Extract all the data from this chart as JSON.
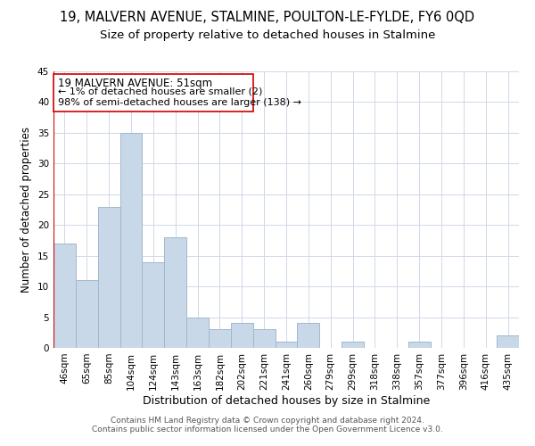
{
  "title": "19, MALVERN AVENUE, STALMINE, POULTON-LE-FYLDE, FY6 0QD",
  "subtitle": "Size of property relative to detached houses in Stalmine",
  "xlabel": "Distribution of detached houses by size in Stalmine",
  "ylabel": "Number of detached properties",
  "bar_color": "#c8d8e8",
  "bar_edge_color": "#a0b8cc",
  "categories": [
    "46sqm",
    "65sqm",
    "85sqm",
    "104sqm",
    "124sqm",
    "143sqm",
    "163sqm",
    "182sqm",
    "202sqm",
    "221sqm",
    "241sqm",
    "260sqm",
    "279sqm",
    "299sqm",
    "318sqm",
    "338sqm",
    "357sqm",
    "377sqm",
    "396sqm",
    "416sqm",
    "435sqm"
  ],
  "values": [
    17,
    11,
    23,
    35,
    14,
    18,
    5,
    3,
    4,
    3,
    1,
    4,
    0,
    1,
    0,
    0,
    1,
    0,
    0,
    0,
    2
  ],
  "ylim": [
    0,
    45
  ],
  "yticks": [
    0,
    5,
    10,
    15,
    20,
    25,
    30,
    35,
    40,
    45
  ],
  "marker_color": "#cc0000",
  "annotation_title": "19 MALVERN AVENUE: 51sqm",
  "annotation_line1": "← 1% of detached houses are smaller (2)",
  "annotation_line2": "98% of semi-detached houses are larger (138) →",
  "footer_line1": "Contains HM Land Registry data © Crown copyright and database right 2024.",
  "footer_line2": "Contains public sector information licensed under the Open Government Licence v3.0.",
  "title_fontsize": 10.5,
  "subtitle_fontsize": 9.5,
  "xlabel_fontsize": 9,
  "ylabel_fontsize": 8.5,
  "tick_fontsize": 7.5,
  "annotation_fontsize": 8.5,
  "footer_fontsize": 6.5,
  "grid_color": "#d0d8e8"
}
